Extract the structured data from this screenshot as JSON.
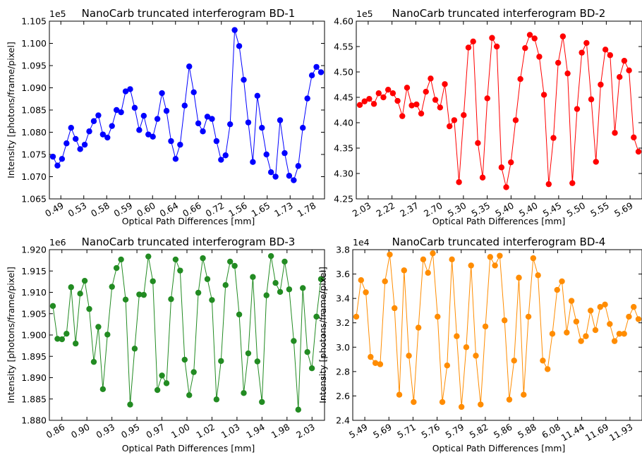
{
  "figure": {
    "xlabel": "Optical Path Differences [mm]",
    "ylabel": "Intensity [photons/frame/pixel]"
  },
  "chart_data": [
    {
      "type": "line",
      "title": "NanoCarb truncated interferogram BD-1",
      "xlabel": "Optical Path Differences [mm]",
      "ylabel": "Intensity [photons/frame/pixel]",
      "color": "#0000ff",
      "ylim": [
        1.065,
        1.105
      ],
      "y_multiplier": "1e5",
      "yticks": [
        "1.065",
        "1.070",
        "1.075",
        "1.080",
        "1.085",
        "1.090",
        "1.095",
        "1.100",
        "1.105"
      ],
      "xticks": [
        "0.49",
        "0.53",
        "0.58",
        "0.59",
        "0.60",
        "0.64",
        "0.66",
        "0.72",
        "1.56",
        "1.65",
        "1.73",
        "1.78"
      ],
      "series": [
        {
          "values": [
            1.0745,
            1.0725,
            1.074,
            1.0775,
            1.081,
            1.0785,
            1.0762,
            1.0772,
            1.0802,
            1.0825,
            1.0838,
            1.0795,
            1.0788,
            1.0814,
            1.085,
            1.0845,
            1.0892,
            1.0897,
            1.0855,
            1.0805,
            1.0837,
            1.0795,
            1.079,
            1.083,
            1.0888,
            1.0848,
            1.078,
            1.074,
            1.0772,
            1.086,
            1.0948,
            1.089,
            1.082,
            1.0802,
            1.0835,
            1.083,
            1.078,
            1.0738,
            1.0748,
            1.0818,
            1.103,
            1.0994,
            1.0918,
            1.0822,
            1.0733,
            1.0882,
            1.081,
            1.075,
            1.071,
            1.07,
            1.0827,
            1.0753,
            1.0702,
            1.0692,
            1.0724,
            1.081,
            1.0876,
            1.0928,
            1.0947,
            1.0935
          ]
        }
      ]
    },
    {
      "type": "line",
      "title": "NanoCarb truncated interferogram BD-2",
      "xlabel": "Optical Path Differences [mm]",
      "ylabel": "",
      "color": "#ff0000",
      "ylim": [
        4.25,
        4.6
      ],
      "y_multiplier": "1e5",
      "yticks": [
        "4.25",
        "4.30",
        "4.35",
        "4.40",
        "4.45",
        "4.50",
        "4.55",
        "4.60"
      ],
      "xticks": [
        "2.03",
        "2.22",
        "2.37",
        "2.70",
        "5.30",
        "5.35",
        "5.40",
        "5.40",
        "5.45",
        "5.50",
        "5.55",
        "5.69"
      ],
      "series": [
        {
          "values": [
            4.435,
            4.442,
            4.447,
            4.437,
            4.458,
            4.45,
            4.465,
            4.458,
            4.443,
            4.413,
            4.469,
            4.434,
            4.436,
            4.418,
            4.461,
            4.487,
            4.445,
            4.43,
            4.476,
            4.393,
            4.405,
            4.283,
            4.415,
            4.548,
            4.56,
            4.36,
            4.292,
            4.448,
            4.567,
            4.55,
            4.312,
            4.273,
            4.322,
            4.405,
            4.486,
            4.547,
            4.573,
            4.566,
            4.53,
            4.455,
            4.279,
            4.37,
            4.518,
            4.57,
            4.497,
            4.281,
            4.427,
            4.538,
            4.557,
            4.446,
            4.323,
            4.475,
            4.544,
            4.533,
            4.38,
            4.49,
            4.522,
            4.503,
            4.371,
            4.343
          ]
        }
      ]
    },
    {
      "type": "line",
      "title": "NanoCarb truncated interferogram BD-3",
      "xlabel": "Optical Path Differences [mm]",
      "ylabel": "Intensity [photons/frame/pixel]",
      "color": "#228b22",
      "ylim": [
        1.88,
        1.92
      ],
      "y_multiplier": "1e6",
      "yticks": [
        "1.880",
        "1.885",
        "1.890",
        "1.895",
        "1.900",
        "1.905",
        "1.910",
        "1.915",
        "1.920"
      ],
      "xticks": [
        "0.86",
        "0.90",
        "0.93",
        "0.95",
        "0.97",
        "1.00",
        "1.02",
        "1.03",
        "1.94",
        "1.98",
        "2.03"
      ],
      "series": [
        {
          "values": [
            1.9068,
            1.8991,
            1.899,
            1.9003,
            1.9112,
            1.898,
            1.9097,
            1.9127,
            1.9061,
            1.8937,
            1.9019,
            1.8873,
            1.9001,
            1.9113,
            1.9157,
            1.9177,
            1.9083,
            1.8837,
            1.8968,
            1.9095,
            1.9094,
            1.9184,
            1.9126,
            1.8871,
            1.8905,
            1.8887,
            1.9084,
            1.9177,
            1.9151,
            1.8942,
            1.8859,
            1.8913,
            1.9099,
            1.918,
            1.9131,
            1.9082,
            1.8849,
            1.8939,
            1.9117,
            1.9172,
            1.9162,
            1.9048,
            1.8864,
            1.8957,
            1.9136,
            1.8938,
            1.8843,
            1.9093,
            1.9185,
            1.9122,
            1.9101,
            1.9172,
            1.9107,
            1.8986,
            1.8825,
            1.911,
            1.896,
            1.8922,
            1.9043,
            1.9131
          ]
        }
      ]
    },
    {
      "type": "line",
      "title": "NanoCarb truncated interferogram BD-4",
      "xlabel": "Optical Path Differences [mm]",
      "ylabel": "",
      "color": "#ff8c00",
      "ylim": [
        2.4,
        3.8
      ],
      "y_multiplier": "1e4",
      "yticks": [
        "2.4",
        "2.6",
        "2.8",
        "3.0",
        "3.2",
        "3.4",
        "3.6",
        "3.8"
      ],
      "xticks": [
        "5.49",
        "5.69",
        "5.71",
        "5.76",
        "5.79",
        "5.82",
        "5.86",
        "5.88",
        "6.08",
        "11.44",
        "11.69",
        "11.93"
      ],
      "series": [
        {
          "values": [
            3.25,
            3.55,
            3.45,
            2.92,
            2.87,
            2.86,
            3.54,
            3.76,
            3.32,
            2.61,
            3.63,
            2.93,
            2.55,
            3.16,
            3.72,
            3.61,
            3.77,
            3.25,
            2.55,
            2.85,
            3.72,
            3.09,
            2.51,
            3.0,
            3.67,
            2.93,
            2.53,
            3.17,
            3.74,
            3.67,
            3.75,
            3.22,
            2.57,
            2.89,
            3.57,
            2.61,
            3.25,
            3.73,
            3.59,
            2.89,
            2.82,
            3.11,
            3.47,
            3.54,
            3.12,
            3.38,
            3.21,
            3.05,
            3.09,
            3.3,
            3.14,
            3.33,
            3.35,
            3.19,
            3.05,
            3.11,
            3.11,
            3.25,
            3.33,
            3.23
          ]
        }
      ]
    }
  ]
}
